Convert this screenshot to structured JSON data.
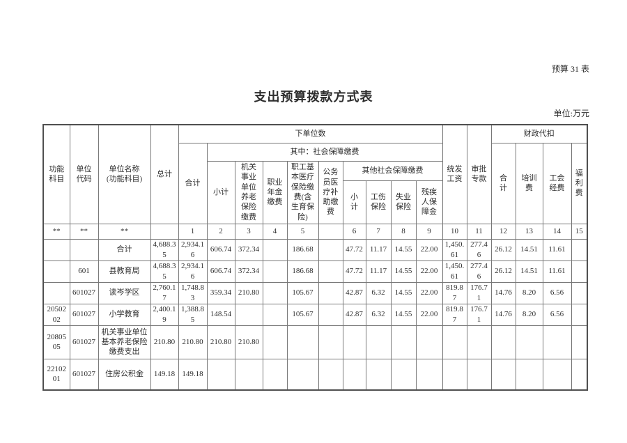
{
  "page": {
    "table_number": "预算 31 表",
    "title": "支出预算拨款方式表",
    "unit_note": "单位:万元"
  },
  "table": {
    "headers": {
      "func_subject": "功能\n科目",
      "unit_code": "单位\n代码",
      "unit_name": "单位名称\n(功能科目)",
      "grand_total": "总计",
      "sub_units_group": "下单位数",
      "total": "合计",
      "social_security_group": "其中：社会保障缴费",
      "subtotal": "小计",
      "gov_pension": "机关\n事业\n单位\n养老\n保险\n缴费",
      "annuity": "职业\n年金\n缴费",
      "basic_medical": "职工基\n本医疗\n保险缴\n费(含\n生育保\n险)",
      "civil_servant_medical": "公务\n员医\n疗补\n助缴\n费",
      "other_social_group": "其他社会保障缴费",
      "other_subtotal": "小\n计",
      "work_injury": "工伤\n保险",
      "unemployment": "失业\n保险",
      "disability_fund": "残疾\n人保\n障金",
      "unified_salary": "统发\n工资",
      "approved_funds": "审批\n专款",
      "withhold_group": "财政代扣",
      "withhold_total": "合\n计",
      "training_fee": "培训\n费",
      "union_fee": "工会\n经费",
      "welfare_fee": "福\n利\n费"
    },
    "col_numbers": [
      "**",
      "**",
      "**",
      "",
      "1",
      "2",
      "3",
      "4",
      "5",
      "",
      "6",
      "7",
      "8",
      "9",
      "10",
      "11",
      "12",
      "13",
      "14",
      "15"
    ],
    "rows": [
      {
        "func_code": "",
        "unit_code": "",
        "name": "合计",
        "values": [
          "4,688.35",
          "2,934.16",
          "606.74",
          "372.34",
          "",
          "186.68",
          "",
          "47.72",
          "11.17",
          "14.55",
          "22.00",
          "1,450.61",
          "277.46",
          "26.12",
          "14.51",
          "11.61",
          ""
        ]
      },
      {
        "func_code": "",
        "unit_code": "601",
        "name": "县教育局",
        "values": [
          "4,688.35",
          "2,934.16",
          "606.74",
          "372.34",
          "",
          "186.68",
          "",
          "47.72",
          "11.17",
          "14.55",
          "22.00",
          "1,450.61",
          "277.46",
          "26.12",
          "14.51",
          "11.61",
          ""
        ]
      },
      {
        "func_code": "",
        "unit_code": "601027",
        "name": "读岑学区",
        "values": [
          "2,760.17",
          "1,748.83",
          "359.34",
          "210.80",
          "",
          "105.67",
          "",
          "42.87",
          "6.32",
          "14.55",
          "22.00",
          "819.87",
          "176.71",
          "14.76",
          "8.20",
          "6.56",
          ""
        ]
      },
      {
        "func_code": "2050202",
        "unit_code": "601027",
        "name": "小学教育",
        "values": [
          "2,400.19",
          "1,388.85",
          "148.54",
          "",
          "",
          "105.67",
          "",
          "42.87",
          "6.32",
          "14.55",
          "22.00",
          "819.87",
          "176.71",
          "14.76",
          "8.20",
          "6.56",
          ""
        ]
      },
      {
        "func_code": "2080505",
        "unit_code": "601027",
        "name": "机关事业单位基本养老保险缴费支出",
        "values": [
          "210.80",
          "210.80",
          "210.80",
          "210.80",
          "",
          "",
          "",
          "",
          "",
          "",
          "",
          "",
          "",
          "",
          "",
          "",
          ""
        ]
      },
      {
        "func_code": "2210201",
        "unit_code": "601027",
        "name": "住房公积金",
        "values": [
          "149.18",
          "149.18",
          "",
          "",
          "",
          "",
          "",
          "",
          "",
          "",
          "",
          "",
          "",
          "",
          "",
          "",
          ""
        ]
      }
    ]
  }
}
